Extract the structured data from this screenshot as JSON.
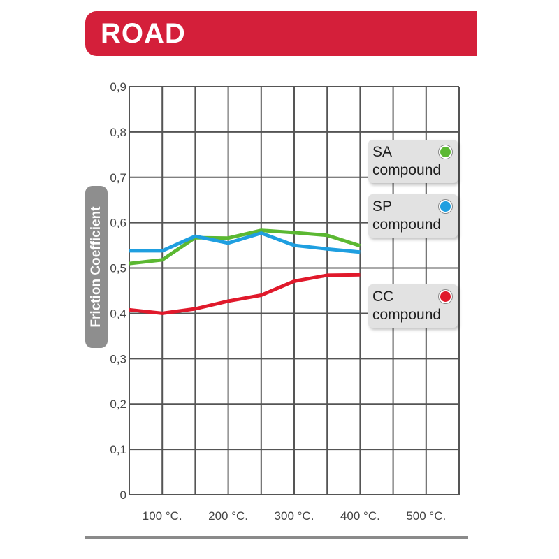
{
  "header": {
    "title": "ROAD",
    "color": "#d41f3a"
  },
  "legend": [
    {
      "line1": "SA",
      "line2": "compound",
      "dot_color": "#5bb832",
      "dot_icon": "green-dot-icon"
    },
    {
      "line1": "SP",
      "line2": "compound",
      "dot_color": "#1f9fe0",
      "dot_icon": "blue-dot-icon"
    },
    {
      "line1": "CC",
      "line2": "compound",
      "dot_color": "#e0192b",
      "dot_icon": "red-dot-icon"
    }
  ],
  "chart_data": {
    "type": "line",
    "title": "",
    "xlabel": "",
    "ylabel": "Friction Coefficient",
    "ylim": [
      0,
      0.9
    ],
    "xlim": [
      50,
      550
    ],
    "yticks": [
      "0",
      "0,1",
      "0,2",
      "0,3",
      "0,4",
      "0,5",
      "0,6",
      "0,7",
      "0,8",
      "0,9"
    ],
    "xticks": [
      {
        "value": 100,
        "label": "100 °C."
      },
      {
        "value": 200,
        "label": "200 °C."
      },
      {
        "value": 300,
        "label": "300 °C."
      },
      {
        "value": 400,
        "label": "400 °C."
      },
      {
        "value": 500,
        "label": "500 °C."
      }
    ],
    "grid": true,
    "legend_position": "right",
    "series": [
      {
        "name": "SA compound",
        "color": "#5bb832",
        "x": [
          50,
          100,
          150,
          200,
          250,
          300,
          350,
          400
        ],
        "y": [
          0.51,
          0.518,
          0.567,
          0.566,
          0.583,
          0.578,
          0.572,
          0.549
        ]
      },
      {
        "name": "SP compound",
        "color": "#1f9fe0",
        "x": [
          50,
          100,
          150,
          200,
          250,
          300,
          350,
          400
        ],
        "y": [
          0.538,
          0.538,
          0.57,
          0.555,
          0.577,
          0.55,
          0.542,
          0.535
        ]
      },
      {
        "name": "CC compound",
        "color": "#e0192b",
        "x": [
          50,
          100,
          150,
          200,
          250,
          300,
          350,
          400
        ],
        "y": [
          0.408,
          0.4,
          0.41,
          0.427,
          0.44,
          0.471,
          0.484,
          0.485
        ]
      }
    ]
  }
}
